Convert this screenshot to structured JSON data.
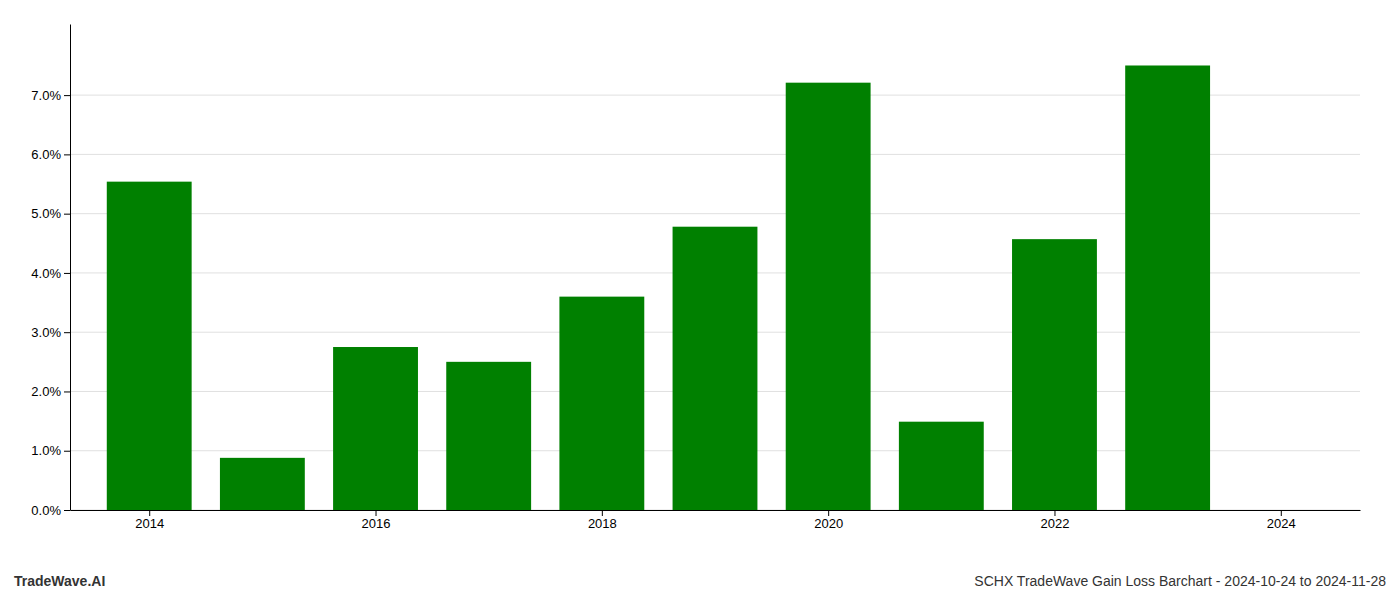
{
  "chart_data": {
    "type": "bar",
    "title": "SCHX TradeWave Gain Loss Barchart - 2024-10-24 to 2024-11-28",
    "annotations": [
      "TradeWave.AI"
    ],
    "x": [
      2014,
      2015,
      2016,
      2017,
      2018,
      2019,
      2020,
      2021,
      2022,
      2023
    ],
    "values": [
      0.0554,
      0.0088,
      0.0275,
      0.025,
      0.036,
      0.0478,
      0.0721,
      0.0149,
      0.0457,
      0.075
    ],
    "color": "#008000",
    "xlim": [
      2013.3,
      2024.7
    ],
    "xticks": [
      2014,
      2016,
      2018,
      2020,
      2022,
      2024
    ],
    "ylim": [
      0,
      0.082
    ],
    "yticks": [
      {
        "value": 0.0,
        "label": "0.0%"
      },
      {
        "value": 0.01,
        "label": "1.0%"
      },
      {
        "value": 0.02,
        "label": "2.0%"
      },
      {
        "value": 0.03,
        "label": "3.0%"
      },
      {
        "value": 0.04,
        "label": "4.0%"
      },
      {
        "value": 0.05,
        "label": "5.0%"
      },
      {
        "value": 0.06,
        "label": "6.0%"
      },
      {
        "value": 0.07,
        "label": "7.0%"
      }
    ],
    "grid": true
  }
}
